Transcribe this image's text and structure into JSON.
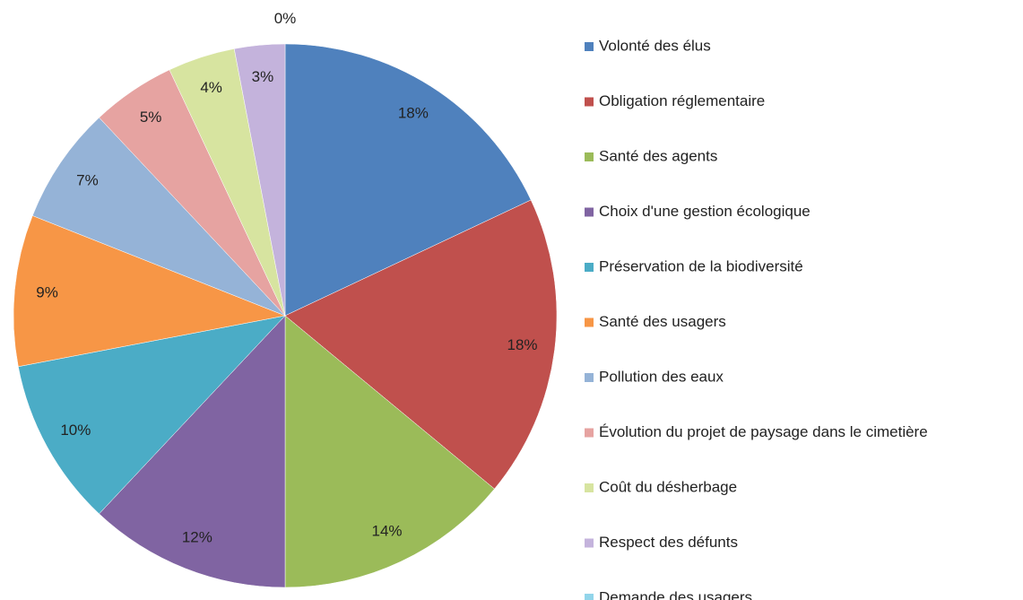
{
  "chart_data": {
    "type": "pie",
    "categories": [
      "Volonté des élus",
      "Obligation réglementaire",
      "Santé des agents",
      "Choix d'une gestion écologique",
      "Préservation de la biodiversité",
      "Santé des usagers",
      "Pollution des eaux",
      "Évolution du projet de paysage dans le cimetière",
      "Coût du désherbage",
      "Respect des défunts",
      "Demande des usagers"
    ],
    "values": [
      18,
      18,
      14,
      12,
      10,
      9,
      7,
      5,
      4,
      3,
      0
    ],
    "value_labels": [
      "18%",
      "18%",
      "14%",
      "12%",
      "10%",
      "9%",
      "7%",
      "5%",
      "4%",
      "3%",
      "0%"
    ],
    "colors": [
      "#4f81bd",
      "#c0504d",
      "#9bbb59",
      "#8064a2",
      "#4bacc6",
      "#f79646",
      "#95b3d7",
      "#e6a3a1",
      "#d7e4a0",
      "#c4b3dc",
      "#92d5ea"
    ],
    "legend": "right"
  }
}
